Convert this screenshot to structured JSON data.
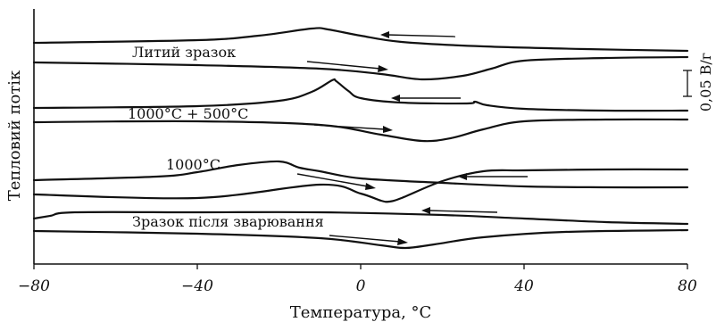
{
  "chart_data": {
    "type": "line",
    "title": "",
    "xlabel": "Температура, °С",
    "ylabel": "Тепловий потік",
    "xlim": [
      -80,
      80
    ],
    "xticks": [
      -80,
      -40,
      0,
      40,
      80
    ],
    "xtick_labels": [
      "−80",
      "−40",
      "0",
      "40",
      "80"
    ],
    "grid": false,
    "scale_bar_label": "0,05 В/г",
    "annotations": [
      "Литий зразок",
      "1000°С + 500°С",
      "1000°С",
      "Зразок після зварювання"
    ],
    "series": [
      {
        "name": "Литий зразок",
        "direction": "cooling",
        "points": [
          [
            -80,
            48
          ],
          [
            -40,
            45
          ],
          [
            -25,
            40
          ],
          [
            -12,
            32
          ],
          [
            -8,
            33
          ],
          [
            0,
            40
          ],
          [
            10,
            47
          ],
          [
            30,
            52
          ],
          [
            55,
            55
          ],
          [
            80,
            57
          ]
        ]
      },
      {
        "name": "Литий зразок",
        "direction": "heating",
        "points": [
          [
            -80,
            70
          ],
          [
            -40,
            73
          ],
          [
            -10,
            77
          ],
          [
            5,
            83
          ],
          [
            15,
            89
          ],
          [
            25,
            85
          ],
          [
            32,
            77
          ],
          [
            40,
            68
          ],
          [
            60,
            65
          ],
          [
            80,
            64
          ]
        ]
      },
      {
        "name": "1000°С + 500°С",
        "direction": "cooling",
        "points": [
          [
            -80,
            121
          ],
          [
            -40,
            119
          ],
          [
            -20,
            113
          ],
          [
            -12,
            103
          ],
          [
            -7,
            90
          ],
          [
            -6,
            91
          ],
          [
            -3,
            102
          ],
          [
            0,
            110
          ],
          [
            10,
            115
          ],
          [
            26,
            116
          ],
          [
            28,
            114
          ],
          [
            31,
            118
          ],
          [
            40,
            122
          ],
          [
            60,
            124
          ],
          [
            80,
            124
          ]
        ]
      },
      {
        "name": "1000°С + 500°С",
        "direction": "heating",
        "points": [
          [
            -80,
            137
          ],
          [
            -40,
            136
          ],
          [
            -10,
            140
          ],
          [
            5,
            151
          ],
          [
            15,
            158
          ],
          [
            22,
            155
          ],
          [
            30,
            145
          ],
          [
            40,
            136
          ],
          [
            60,
            134
          ],
          [
            80,
            134
          ]
        ]
      },
      {
        "name": "1000°С",
        "direction": "cooling",
        "points": [
          [
            -80,
            202
          ],
          [
            -50,
            198
          ],
          [
            -40,
            193
          ],
          [
            -30,
            185
          ],
          [
            -20,
            181
          ],
          [
            -15,
            188
          ],
          [
            -10,
            192
          ],
          [
            0,
            200
          ],
          [
            20,
            205
          ],
          [
            40,
            209
          ],
          [
            60,
            210
          ],
          [
            80,
            210
          ]
        ]
      },
      {
        "name": "1000°С",
        "direction": "heating",
        "points": [
          [
            -80,
            218
          ],
          [
            -40,
            222
          ],
          [
            -10,
            207
          ],
          [
            0,
            217
          ],
          [
            5,
            225
          ],
          [
            7,
            226
          ],
          [
            10,
            222
          ],
          [
            20,
            203
          ],
          [
            30,
            192
          ],
          [
            40,
            191
          ],
          [
            60,
            190
          ],
          [
            80,
            190
          ]
        ]
      },
      {
        "name": "Зразок після зварювання",
        "direction": "cooling",
        "points": [
          [
            -80,
            245
          ],
          [
            -76,
            242
          ],
          [
            -70,
            238
          ],
          [
            -40,
            238
          ],
          [
            -10,
            238
          ],
          [
            20,
            241
          ],
          [
            40,
            245
          ],
          [
            60,
            249
          ],
          [
            80,
            251
          ]
        ]
      },
      {
        "name": "Зразок після зварювання",
        "direction": "heating",
        "points": [
          [
            -80,
            259
          ],
          [
            -40,
            262
          ],
          [
            -10,
            267
          ],
          [
            5,
            275
          ],
          [
            11,
            278
          ],
          [
            18,
            274
          ],
          [
            30,
            266
          ],
          [
            50,
            260
          ],
          [
            80,
            258
          ]
        ]
      }
    ]
  }
}
